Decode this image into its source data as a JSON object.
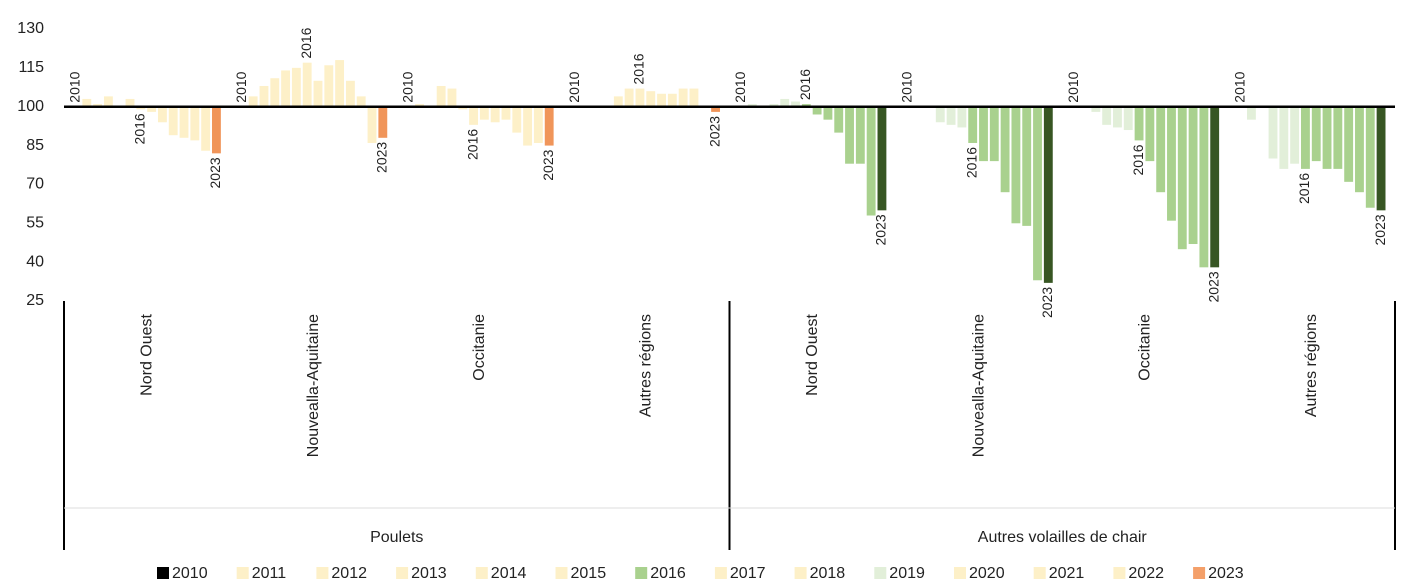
{
  "chart_data": {
    "type": "bar",
    "categories": [
      "Nord Ouest",
      "Nouvealla-Aquitaine",
      "Occitanie",
      "Autres régions",
      "Nord Ouest",
      "Nouvealla-Aquitaine",
      "Occitanie",
      "Autres régions"
    ],
    "groups": [
      "Poulets",
      "Autres volailles de chair"
    ],
    "baseline": 100,
    "ylim": [
      25,
      130
    ],
    "yticks": [
      25,
      40,
      55,
      70,
      85,
      100,
      115,
      130
    ],
    "annotated_series": [
      0,
      6,
      13
    ],
    "series": [
      {
        "name": "2010",
        "color": "#000000",
        "colors": [
          "#fdf0c8",
          "#fdf0c8",
          "#fdf0c8",
          "#fdf0c8",
          "#e2efd9",
          "#e2efd9",
          "#e2efd9",
          "#e2efd9"
        ],
        "values": [
          100,
          100,
          100,
          100,
          100,
          100,
          100,
          100
        ]
      },
      {
        "name": "2011",
        "color": "#fdf0c8",
        "colors": [
          "#fdf0c8",
          "#fdf0c8",
          "#fdf0c8",
          "#fdf0c8",
          "#e2efd9",
          "#e2efd9",
          "#e2efd9",
          "#e2efd9"
        ],
        "values": [
          103,
          104,
          101,
          100,
          101,
          100,
          100,
          95
        ]
      },
      {
        "name": "2012",
        "color": "#fdf0c8",
        "colors": [
          "#fdf0c8",
          "#fdf0c8",
          "#fdf0c8",
          "#fdf0c8",
          "#e2efd9",
          "#e2efd9",
          "#e2efd9",
          "#e2efd9"
        ],
        "values": [
          101,
          108,
          100,
          100,
          100,
          100,
          98,
          100
        ]
      },
      {
        "name": "2013",
        "color": "#fdf0c8",
        "colors": [
          "#fdf0c8",
          "#fdf0c8",
          "#fdf0c8",
          "#fdf0c8",
          "#e2efd9",
          "#e2efd9",
          "#e2efd9",
          "#e2efd9"
        ],
        "values": [
          104,
          111,
          108,
          100,
          101,
          94,
          93,
          80
        ]
      },
      {
        "name": "2014",
        "color": "#fdf0c8",
        "colors": [
          "#fdf0c8",
          "#fdf0c8",
          "#fdf0c8",
          "#fdf0c8",
          "#e2efd9",
          "#e2efd9",
          "#e2efd9",
          "#e2efd9"
        ],
        "values": [
          100,
          114,
          107,
          104,
          103,
          93,
          92,
          76
        ]
      },
      {
        "name": "2015",
        "color": "#fdf0c8",
        "colors": [
          "#fdf0c8",
          "#fdf0c8",
          "#fdf0c8",
          "#fdf0c8",
          "#e2efd9",
          "#e2efd9",
          "#e2efd9",
          "#e2efd9"
        ],
        "values": [
          103,
          115,
          99,
          107,
          102,
          92,
          91,
          78
        ]
      },
      {
        "name": "2016",
        "color": "#a9d18e",
        "colors": [
          "#fdf0c8",
          "#fdf0c8",
          "#fdf0c8",
          "#fdf0c8",
          "#a9d18e",
          "#a9d18e",
          "#a9d18e",
          "#a9d18e"
        ],
        "values": [
          99,
          117,
          93,
          107,
          101,
          86,
          87,
          76
        ]
      },
      {
        "name": "2017",
        "color": "#fdf0c8",
        "colors": [
          "#fdf0c8",
          "#fdf0c8",
          "#fdf0c8",
          "#fdf0c8",
          "#a9d18e",
          "#a9d18e",
          "#a9d18e",
          "#a9d18e"
        ],
        "values": [
          98,
          110,
          95,
          106,
          97,
          79,
          79,
          79
        ]
      },
      {
        "name": "2018",
        "color": "#fdf0c8",
        "colors": [
          "#fdf0c8",
          "#fdf0c8",
          "#fdf0c8",
          "#fdf0c8",
          "#a9d18e",
          "#a9d18e",
          "#a9d18e",
          "#a9d18e"
        ],
        "values": [
          94,
          116,
          94,
          105,
          95,
          79,
          67,
          76
        ]
      },
      {
        "name": "2019",
        "color": "#e2efd9",
        "colors": [
          "#fdf0c8",
          "#fdf0c8",
          "#fdf0c8",
          "#fdf0c8",
          "#a9d18e",
          "#a9d18e",
          "#a9d18e",
          "#a9d18e"
        ],
        "values": [
          89,
          118,
          95,
          105,
          90,
          67,
          56,
          76
        ]
      },
      {
        "name": "2020",
        "color": "#fdf0c8",
        "colors": [
          "#fdf0c8",
          "#fdf0c8",
          "#fdf0c8",
          "#fdf0c8",
          "#a9d18e",
          "#a9d18e",
          "#a9d18e",
          "#a9d18e"
        ],
        "values": [
          88,
          110,
          90,
          107,
          78,
          55,
          45,
          71
        ]
      },
      {
        "name": "2021",
        "color": "#fdf0c8",
        "colors": [
          "#fdf0c8",
          "#fdf0c8",
          "#fdf0c8",
          "#fdf0c8",
          "#a9d18e",
          "#a9d18e",
          "#a9d18e",
          "#a9d18e"
        ],
        "values": [
          87,
          104,
          85,
          107,
          78,
          54,
          47,
          67
        ]
      },
      {
        "name": "2022",
        "color": "#fdf0c8",
        "colors": [
          "#fdf0c8",
          "#fdf0c8",
          "#fdf0c8",
          "#fdf0c8",
          "#a9d18e",
          "#a9d18e",
          "#a9d18e",
          "#a9d18e"
        ],
        "values": [
          83,
          86,
          86,
          100,
          58,
          33,
          38,
          61
        ]
      },
      {
        "name": "2023",
        "color": "#f4a06a",
        "colors": [
          "#f0955a",
          "#f0955a",
          "#f0955a",
          "#f0955a",
          "#375623",
          "#375623",
          "#375623",
          "#375623"
        ],
        "values": [
          82,
          88,
          85,
          98,
          60,
          32,
          38,
          60
        ]
      }
    ]
  }
}
